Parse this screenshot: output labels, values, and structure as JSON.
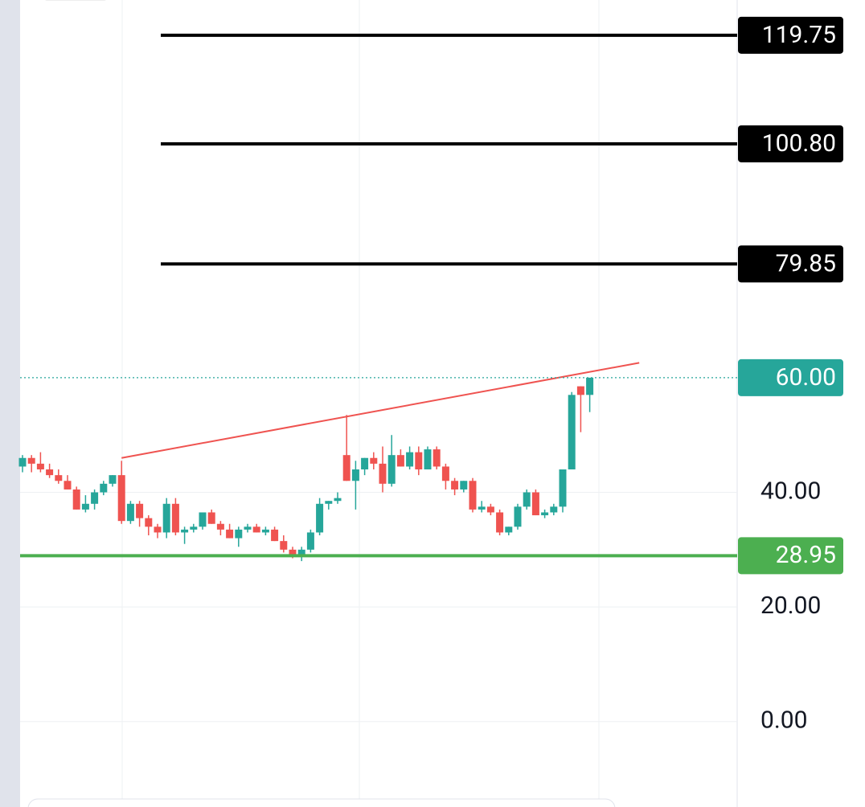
{
  "chart_data": {
    "type": "candlestick",
    "ylim": [
      -14.9,
      125.9
    ],
    "yticks": [
      {
        "value": 0,
        "label": "0.00"
      },
      {
        "value": 20,
        "label": "20.00"
      },
      {
        "value": 40,
        "label": "40.00"
      }
    ],
    "grid": true,
    "up_color": "#26a69a",
    "down_color": "#ef5350",
    "open": [
      44.5,
      46,
      45,
      44,
      43,
      42,
      40.5,
      37,
      38,
      40,
      41.5,
      43,
      35,
      38,
      35.5,
      34,
      33,
      38,
      33,
      33.5,
      34,
      36.5,
      34.5,
      33.5,
      32,
      33.5,
      34,
      33,
      33.5,
      31.5,
      30,
      29,
      30,
      33,
      38,
      38.5,
      46.5,
      42,
      44,
      46,
      45,
      41.5,
      46.5,
      44.5,
      47,
      44,
      47.5,
      44.5,
      42,
      40.5,
      42,
      37,
      37.5,
      36.5,
      33,
      34,
      37.5,
      40,
      36,
      36.5,
      37.5,
      44,
      58.5,
      57
    ],
    "high": [
      46.5,
      46.5,
      47,
      45,
      44,
      43,
      41,
      39.5,
      40.5,
      42,
      43,
      45.5,
      38.5,
      38.5,
      36,
      34.5,
      39,
      39,
      34,
      34.5,
      36.5,
      37,
      35,
      34.5,
      34,
      34.5,
      34.5,
      34,
      34,
      32.5,
      30.5,
      30.5,
      33.5,
      39,
      38.5,
      40,
      53.5,
      45.5,
      46,
      47,
      48,
      50,
      47.5,
      48,
      48,
      48,
      48,
      45,
      42.5,
      42,
      42.5,
      38.5,
      38,
      37,
      34,
      38,
      40.5,
      40.5,
      37,
      38,
      44,
      57.5,
      58.5,
      60
    ],
    "low": [
      43.5,
      43.5,
      43.5,
      42.5,
      41.5,
      40.5,
      37,
      36.5,
      37,
      39.5,
      41,
      34.5,
      34.5,
      34,
      32.5,
      32,
      32,
      32.5,
      31,
      33,
      33.5,
      34.5,
      32.5,
      32,
      30.5,
      33,
      33,
      32.5,
      31.5,
      29.5,
      28.5,
      28,
      29.5,
      32.5,
      37,
      38,
      42,
      37,
      43,
      44,
      40,
      41,
      44.5,
      44,
      43,
      44,
      44,
      40.5,
      39.5,
      40,
      36.5,
      36.5,
      36,
      32.5,
      32.5,
      33.5,
      37,
      36,
      35.5,
      36,
      36.5,
      44,
      50.5,
      54
    ],
    "close": [
      46,
      45,
      44,
      43,
      42,
      40.5,
      37,
      38,
      40,
      41.5,
      43,
      35,
      38,
      35.5,
      34,
      33,
      38,
      33,
      33.5,
      34,
      36.5,
      34.5,
      33.5,
      32,
      33.5,
      34,
      33,
      33.5,
      31.5,
      30,
      29,
      30,
      33,
      38,
      38.5,
      39,
      42,
      44,
      46,
      45,
      41.5,
      46.5,
      44.5,
      47,
      44,
      47.5,
      44.5,
      42,
      40.5,
      42,
      37,
      37.5,
      36.5,
      33,
      34,
      37.5,
      40,
      36,
      36.5,
      37.5,
      44,
      57,
      57,
      60
    ],
    "trendline": {
      "start": [
        11,
        46
      ],
      "end": [
        68.5,
        62.6
      ],
      "color": "#ef5350"
    },
    "price_lines": [
      {
        "value": 119.75,
        "label": "119.75",
        "color": "#000000",
        "style": "solid"
      },
      {
        "value": 100.8,
        "label": "100.80",
        "color": "#000000",
        "style": "solid"
      },
      {
        "value": 79.85,
        "label": "79.85",
        "color": "#000000",
        "style": "solid"
      },
      {
        "value": 60,
        "label": "60.00",
        "color": "#26a69a",
        "style": "dotted"
      },
      {
        "value": 28.95,
        "label": "28.95",
        "color": "#4caf50",
        "style": "solid"
      }
    ]
  }
}
